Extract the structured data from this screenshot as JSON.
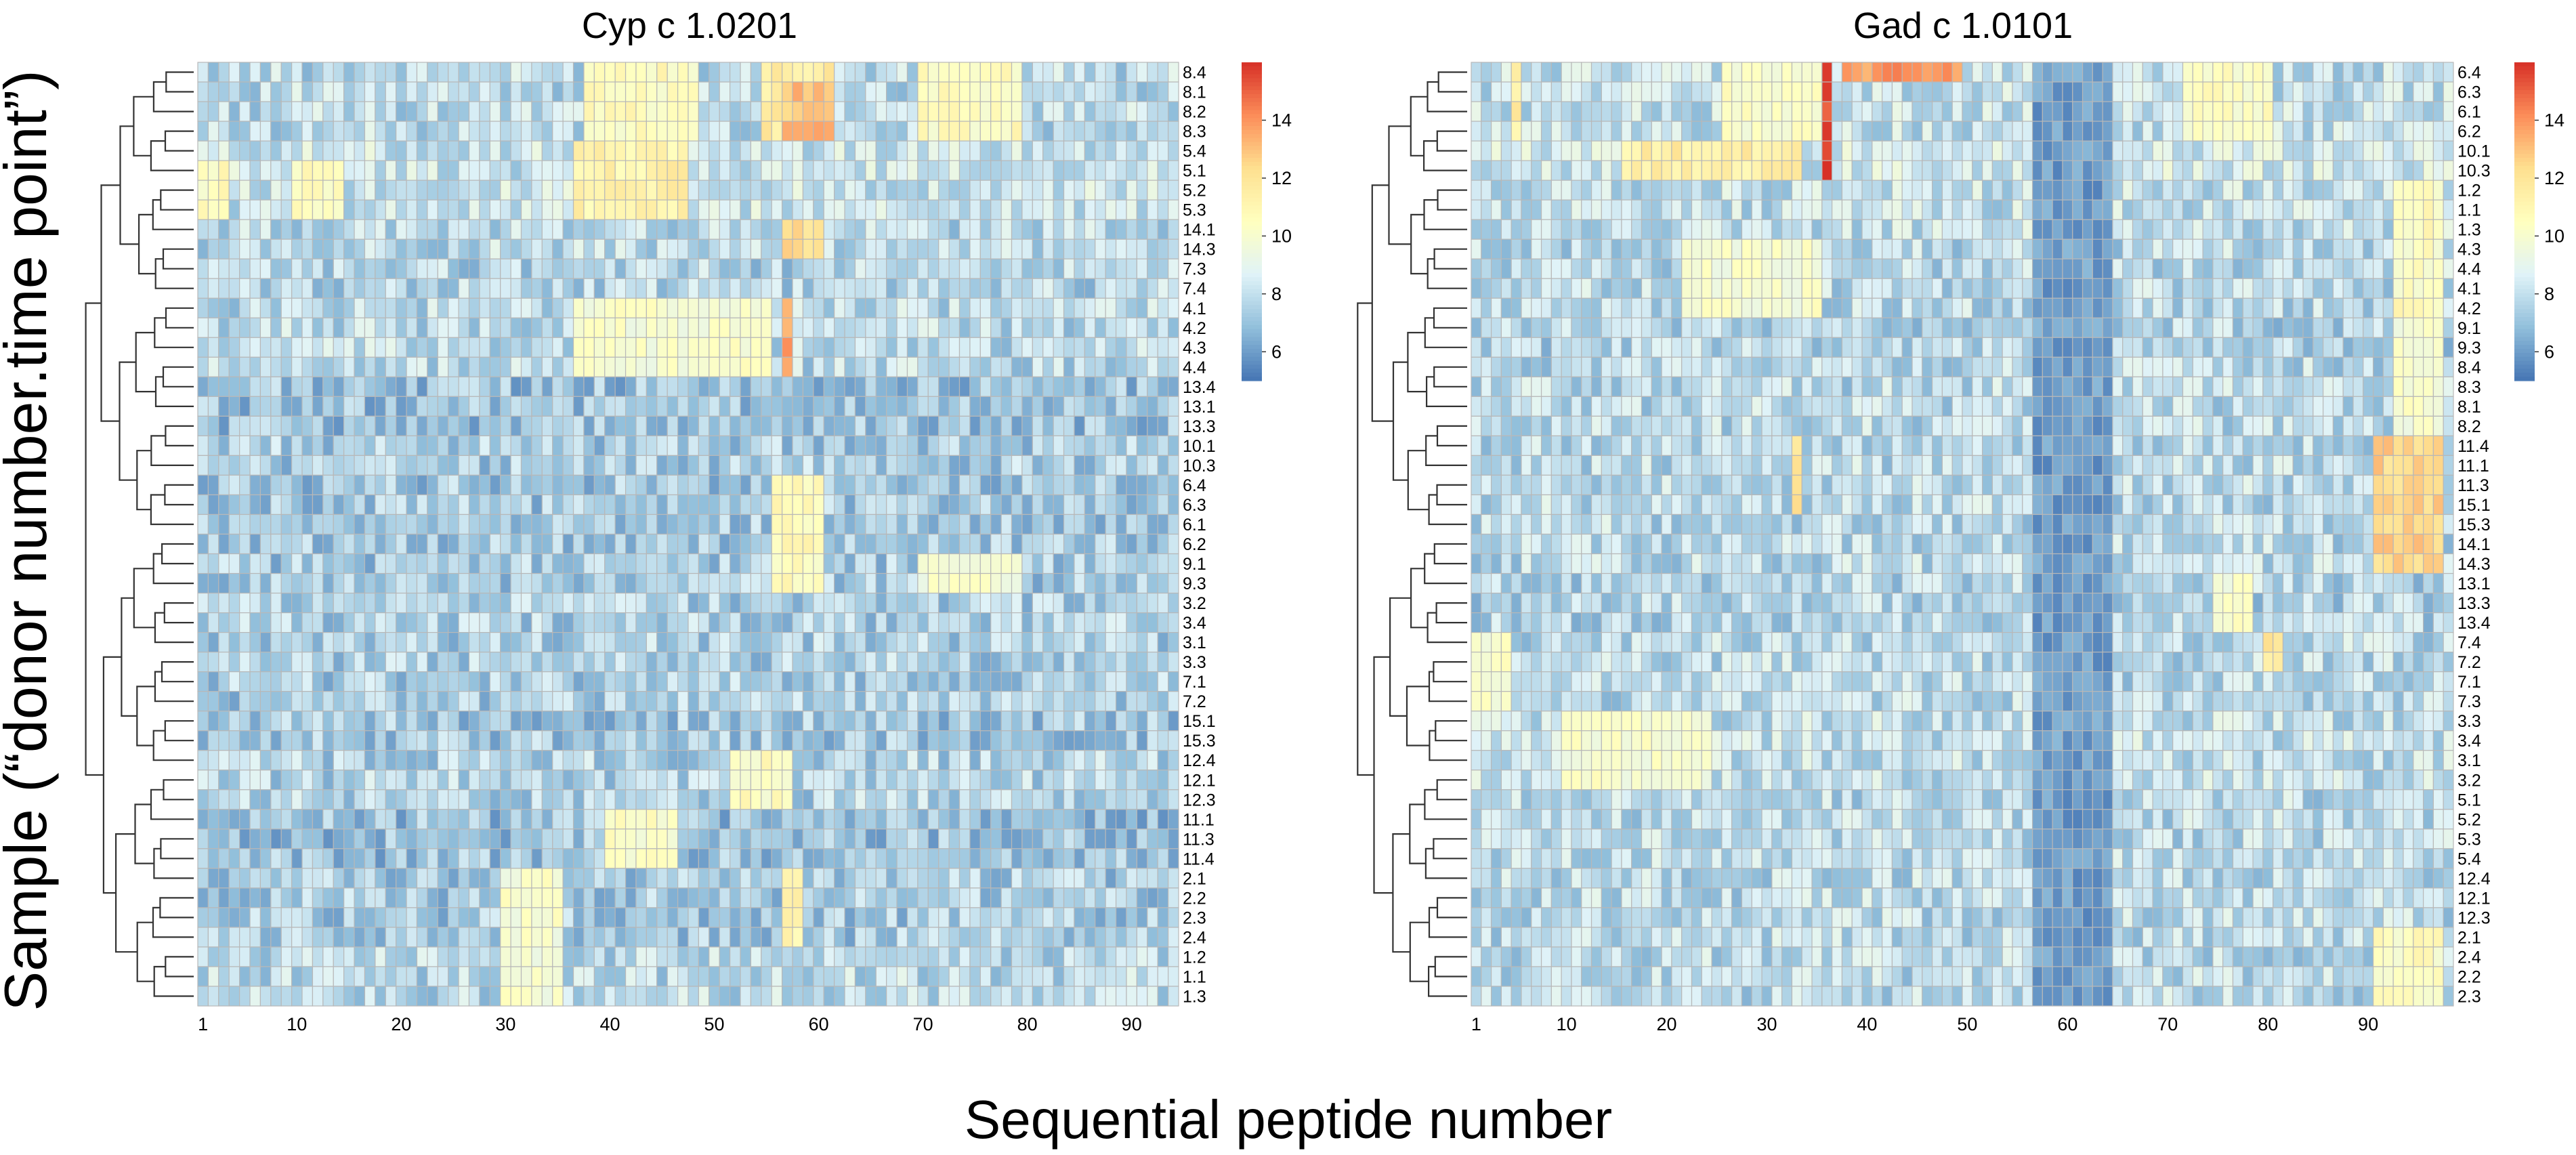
{
  "figure": {
    "ylabel": "Sample (“donor number.time point”)",
    "xlabel": "Sequential peptide number"
  },
  "colorbar": {
    "colors": [
      "#4575b4",
      "#91bfdb",
      "#e0f3f8",
      "#ffffbf",
      "#fee090",
      "#fc8d59",
      "#d73027"
    ],
    "cell_border": "#b8b8b8"
  },
  "chart_data": [
    {
      "type": "heatmap",
      "title": "Cyp c 1.0201",
      "xlabel": "Sequential peptide number",
      "ylabel": "Sample (“donor number.time point”)",
      "n_cols": 94,
      "x_ticks": [
        1,
        10,
        20,
        30,
        40,
        50,
        60,
        70,
        80,
        90
      ],
      "value_range": [
        5,
        16
      ],
      "colorbar_ticks": [
        6,
        8,
        10,
        12,
        14
      ],
      "row_dendrogram": true,
      "rows": [
        "8.4",
        "8.1",
        "8.2",
        "8.3",
        "5.4",
        "5.1",
        "5.2",
        "5.3",
        "14.1",
        "14.3",
        "7.3",
        "7.4",
        "4.1",
        "4.2",
        "4.3",
        "4.4",
        "13.4",
        "13.1",
        "13.3",
        "10.1",
        "10.3",
        "6.4",
        "6.3",
        "6.1",
        "6.2",
        "9.1",
        "9.3",
        "3.2",
        "3.4",
        "3.1",
        "3.3",
        "7.1",
        "7.2",
        "15.1",
        "15.3",
        "12.4",
        "12.1",
        "12.3",
        "11.1",
        "11.3",
        "11.4",
        "2.1",
        "2.2",
        "2.3",
        "2.4",
        "1.2",
        "1.1",
        "1.3"
      ],
      "base_values": [
        7.8,
        7.8,
        7.8,
        7.8,
        8.2,
        8.2,
        8.2,
        8.2,
        7.8,
        7.8,
        7.6,
        7.6,
        7.8,
        7.8,
        7.8,
        7.8,
        7.0,
        7.0,
        7.0,
        7.4,
        7.4,
        7.2,
        7.2,
        7.2,
        7.2,
        7.3,
        7.3,
        7.5,
        7.5,
        7.5,
        7.5,
        7.4,
        7.4,
        7.2,
        7.2,
        7.6,
        7.6,
        7.6,
        7.0,
        7.0,
        7.0,
        7.3,
        7.3,
        7.3,
        7.3,
        7.8,
        7.8,
        7.8
      ],
      "hotspots": [
        {
          "rows": [
            0,
            3
          ],
          "cols": [
            38,
            48
          ],
          "value": 10.6
        },
        {
          "rows": [
            0,
            3
          ],
          "cols": [
            55,
            61
          ],
          "value": 11.5
        },
        {
          "rows": [
            1,
            3
          ],
          "cols": [
            57,
            61
          ],
          "value": 13.0
        },
        {
          "rows": [
            0,
            3
          ],
          "cols": [
            70,
            79
          ],
          "value": 10.5
        },
        {
          "rows": [
            4,
            7
          ],
          "cols": [
            37,
            47
          ],
          "value": 11.2
        },
        {
          "rows": [
            5,
            7
          ],
          "cols": [
            1,
            3
          ],
          "value": 10.5
        },
        {
          "rows": [
            5,
            7
          ],
          "cols": [
            10,
            14
          ],
          "value": 10.5
        },
        {
          "rows": [
            8,
            9
          ],
          "cols": [
            57,
            60
          ],
          "value": 12.2
        },
        {
          "rows": [
            12,
            15
          ],
          "cols": [
            37,
            55
          ],
          "value": 10.0
        },
        {
          "rows": [
            12,
            15
          ],
          "cols": [
            57,
            57
          ],
          "value": 13.5
        },
        {
          "rows": [
            21,
            26
          ],
          "cols": [
            56,
            60
          ],
          "value": 10.6
        },
        {
          "rows": [
            25,
            26
          ],
          "cols": [
            70,
            79
          ],
          "value": 9.9
        },
        {
          "rows": [
            35,
            37
          ],
          "cols": [
            52,
            57
          ],
          "value": 10.4
        },
        {
          "rows": [
            38,
            40
          ],
          "cols": [
            40,
            46
          ],
          "value": 10.2
        },
        {
          "rows": [
            41,
            44
          ],
          "cols": [
            57,
            58
          ],
          "value": 11.0
        },
        {
          "rows": [
            41,
            47
          ],
          "cols": [
            30,
            35
          ],
          "value": 10.0
        }
      ]
    },
    {
      "type": "heatmap",
      "title": "Gad c 1.0101",
      "xlabel": "Sequential peptide number",
      "ylabel": "Sample (“donor number.time point”)",
      "n_cols": 98,
      "x_ticks": [
        1,
        10,
        20,
        30,
        40,
        50,
        60,
        70,
        80,
        90
      ],
      "value_range": [
        5,
        16
      ],
      "colorbar_ticks": [
        6,
        8,
        10,
        12,
        14
      ],
      "row_dendrogram": true,
      "rows": [
        "6.4",
        "6.3",
        "6.1",
        "6.2",
        "10.1",
        "10.3",
        "1.2",
        "1.1",
        "1.3",
        "4.3",
        "4.4",
        "4.1",
        "4.2",
        "9.1",
        "9.3",
        "8.4",
        "8.3",
        "8.1",
        "8.2",
        "11.4",
        "11.1",
        "11.3",
        "15.1",
        "15.3",
        "14.1",
        "14.3",
        "13.1",
        "13.3",
        "13.4",
        "7.4",
        "7.2",
        "7.1",
        "7.3",
        "3.3",
        "3.4",
        "3.1",
        "3.2",
        "5.1",
        "5.2",
        "5.3",
        "5.4",
        "12.4",
        "12.1",
        "12.3",
        "2.1",
        "2.4",
        "2.2",
        "2.3"
      ],
      "base_values": [
        8.0,
        8.0,
        8.0,
        8.0,
        8.4,
        8.4,
        8.0,
        8.0,
        8.0,
        7.8,
        7.8,
        7.8,
        7.8,
        7.6,
        7.6,
        7.8,
        7.8,
        7.8,
        7.8,
        7.8,
        7.8,
        7.8,
        7.8,
        7.8,
        7.8,
        7.8,
        7.6,
        7.6,
        7.6,
        7.8,
        7.8,
        7.8,
        7.8,
        8.0,
        8.0,
        8.0,
        8.0,
        7.8,
        7.8,
        7.8,
        7.8,
        7.8,
        7.8,
        7.8,
        7.8,
        7.8,
        7.8,
        7.8
      ],
      "hotspots": [
        {
          "rows": [
            0,
            47
          ],
          "cols": [
            57,
            64
          ],
          "value": 6.0
        },
        {
          "rows": [
            0,
            3
          ],
          "cols": [
            26,
            36
          ],
          "value": 10.3
        },
        {
          "rows": [
            0,
            0
          ],
          "cols": [
            38,
            49
          ],
          "value": 13.8
        },
        {
          "rows": [
            0,
            5
          ],
          "cols": [
            36,
            36
          ],
          "value": 15.5
        },
        {
          "rows": [
            0,
            3
          ],
          "cols": [
            72,
            80
          ],
          "value": 10.4
        },
        {
          "rows": [
            0,
            3
          ],
          "cols": [
            5,
            5
          ],
          "value": 11.5
        },
        {
          "rows": [
            4,
            5
          ],
          "cols": [
            16,
            33
          ],
          "value": 11.5
        },
        {
          "rows": [
            6,
            12
          ],
          "cols": [
            93,
            97
          ],
          "value": 10.5
        },
        {
          "rows": [
            9,
            12
          ],
          "cols": [
            22,
            35
          ],
          "value": 10.0
        },
        {
          "rows": [
            13,
            18
          ],
          "cols": [
            93,
            97
          ],
          "value": 10.0
        },
        {
          "rows": [
            19,
            25
          ],
          "cols": [
            91,
            97
          ],
          "value": 12.5
        },
        {
          "rows": [
            19,
            22
          ],
          "cols": [
            33,
            33
          ],
          "value": 12.0
        },
        {
          "rows": [
            26,
            28
          ],
          "cols": [
            75,
            78
          ],
          "value": 10.0
        },
        {
          "rows": [
            29,
            30
          ],
          "cols": [
            80,
            81
          ],
          "value": 12.0
        },
        {
          "rows": [
            33,
            36
          ],
          "cols": [
            10,
            24
          ],
          "value": 10.0
        },
        {
          "rows": [
            44,
            47
          ],
          "cols": [
            91,
            97
          ],
          "value": 10.5
        },
        {
          "rows": [
            29,
            32
          ],
          "cols": [
            1,
            4
          ],
          "value": 10.0
        }
      ]
    }
  ]
}
